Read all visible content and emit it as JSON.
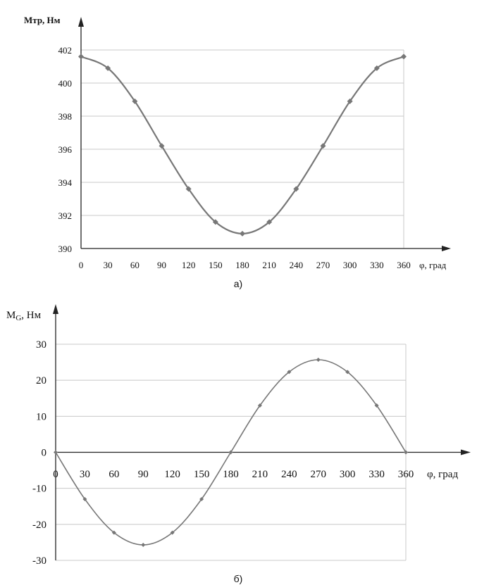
{
  "figure": {
    "caption_a": "а)",
    "caption_b": "б)"
  },
  "chart_data": [
    {
      "type": "line",
      "ylabel": "Мтр, Нм",
      "xlabel": "φ, град",
      "xlim": [
        0,
        360
      ],
      "ylim": [
        390,
        402
      ],
      "x_ticks": [
        0,
        30,
        60,
        90,
        120,
        150,
        180,
        210,
        240,
        270,
        300,
        330,
        360
      ],
      "y_ticks": [
        390,
        392,
        394,
        396,
        398,
        400,
        402
      ],
      "grid": true,
      "series": [
        {
          "color": "#777777",
          "marker": "diamond",
          "x": [
            0,
            30,
            60,
            90,
            120,
            150,
            180,
            210,
            240,
            270,
            300,
            330,
            360
          ],
          "y": [
            401.6,
            400.9,
            398.9,
            396.2,
            393.6,
            391.6,
            390.9,
            391.6,
            393.6,
            396.2,
            398.9,
            400.9,
            401.6
          ]
        }
      ]
    },
    {
      "type": "line",
      "ylabel": "MG, Нм",
      "ylabel_main": "M",
      "ylabel_sub": "G",
      "ylabel_rest": ", Нм",
      "xlabel": "φ, град",
      "xlim": [
        0,
        360
      ],
      "ylim": [
        -30,
        30
      ],
      "x_ticks": [
        0,
        30,
        60,
        90,
        120,
        150,
        180,
        210,
        240,
        270,
        300,
        330,
        360
      ],
      "y_ticks": [
        -30,
        -20,
        -10,
        0,
        10,
        20,
        30
      ],
      "grid": true,
      "series": [
        {
          "color": "#777777",
          "marker": "diamond",
          "x": [
            0,
            30,
            60,
            90,
            120,
            150,
            180,
            210,
            240,
            270,
            300,
            330,
            360
          ],
          "y": [
            0,
            -13,
            -22.3,
            -25.7,
            -22.3,
            -13,
            0,
            13,
            22.3,
            25.7,
            22.3,
            13,
            0
          ]
        }
      ]
    }
  ]
}
